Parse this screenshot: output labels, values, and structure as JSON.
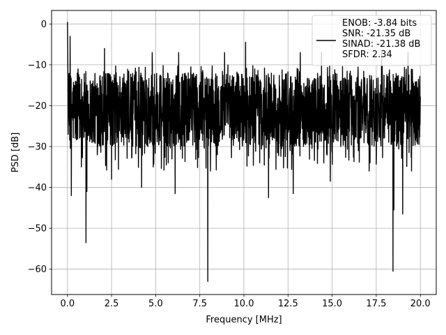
{
  "chart_data": {
    "type": "line",
    "title": "",
    "xlabel": "Frequency [MHz]",
    "ylabel": "PSD [dB]",
    "xlim": [
      -0.9,
      20.9
    ],
    "ylim": [
      -66.2,
      3.3
    ],
    "xticks": [
      0.0,
      2.5,
      5.0,
      7.5,
      10.0,
      12.5,
      15.0,
      17.5,
      20.0
    ],
    "xtick_labels": [
      "0.0",
      "2.5",
      "5.0",
      "7.5",
      "10.0",
      "12.5",
      "15.0",
      "17.5",
      "20.0"
    ],
    "yticks": [
      0,
      -10,
      -20,
      -30,
      -40,
      -50,
      -60
    ],
    "ytick_labels": [
      "0",
      "−10",
      "−20",
      "−30",
      "−40",
      "−50",
      "−60"
    ],
    "grid": true,
    "legend_position": "top-right",
    "series": [
      {
        "name": "ENOB: -3.84 bits\nSNR: -21.35 dB\nSINAD: -21.38 dB\nSFDR: 2.34",
        "legend_lines": [
          "ENOB: -3.84 bits",
          "SNR: -21.35 dB",
          "SINAD: -21.38 dB",
          "SFDR: 2.34"
        ],
        "color": "#000000",
        "x_range": [
          0.0,
          20.0
        ],
        "n_points": 2000,
        "noise_band": [
          -30,
          -12
        ],
        "start_values": [
          0.5,
          -3,
          -8,
          -15,
          -27
        ],
        "peaks": [
          {
            "x": 0.15,
            "y": -3
          },
          {
            "x": 2.1,
            "y": -6
          },
          {
            "x": 4.8,
            "y": -7
          },
          {
            "x": 6.3,
            "y": -7
          },
          {
            "x": 8.9,
            "y": -7
          },
          {
            "x": 10.1,
            "y": -4.5
          },
          {
            "x": 13.2,
            "y": -7
          },
          {
            "x": 14.4,
            "y": -7
          },
          {
            "x": 17.8,
            "y": -7
          },
          {
            "x": 19.3,
            "y": -7
          }
        ],
        "dips": [
          {
            "x": 0.22,
            "y": -42
          },
          {
            "x": 1.05,
            "y": -53.5
          },
          {
            "x": 1.1,
            "y": -41
          },
          {
            "x": 2.5,
            "y": -38
          },
          {
            "x": 4.2,
            "y": -40
          },
          {
            "x": 6.1,
            "y": -41.5
          },
          {
            "x": 7.95,
            "y": -63
          },
          {
            "x": 8.1,
            "y": -36
          },
          {
            "x": 11.4,
            "y": -42.5
          },
          {
            "x": 12.8,
            "y": -41.5
          },
          {
            "x": 14.9,
            "y": -38.5
          },
          {
            "x": 17.1,
            "y": -36
          },
          {
            "x": 18.45,
            "y": -60.5
          },
          {
            "x": 18.5,
            "y": -45.5
          },
          {
            "x": 19.0,
            "y": -46.5
          },
          {
            "x": 19.5,
            "y": -36
          }
        ]
      }
    ]
  }
}
